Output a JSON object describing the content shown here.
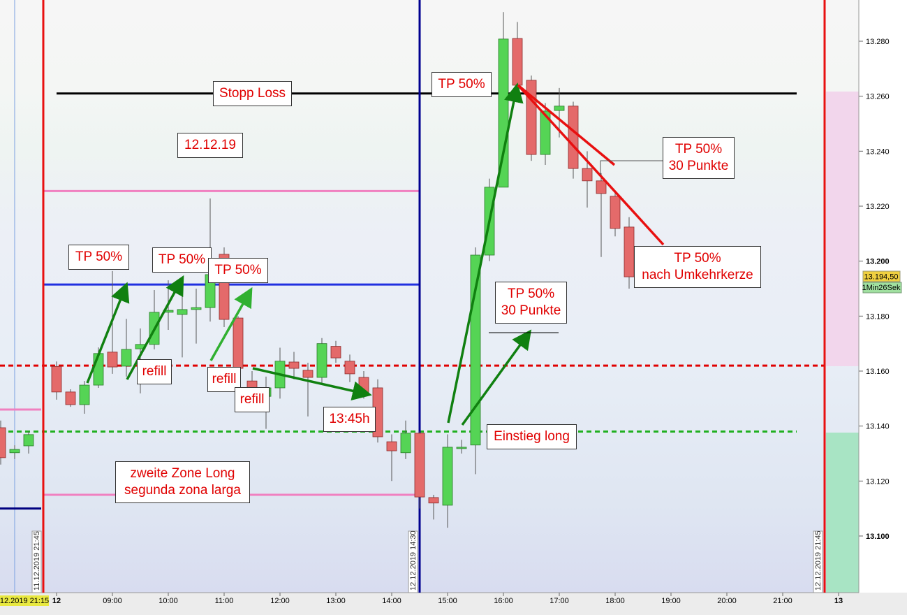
{
  "chart_data": {
    "type": "candlestick",
    "x": [
      7.0,
      7.25,
      7.5,
      8.0,
      8.25,
      8.5,
      8.75,
      9.0,
      9.25,
      9.5,
      9.75,
      10.0,
      10.25,
      10.5,
      10.75,
      11.0,
      11.25,
      11.5,
      11.75,
      12.0,
      12.25,
      12.5,
      12.75,
      13.0,
      13.25,
      13.5,
      13.75,
      14.0,
      14.25,
      14.5,
      14.75,
      15.0,
      15.25,
      15.5,
      15.75,
      16.0,
      16.25,
      16.5,
      16.75,
      17.0,
      17.25,
      17.5,
      17.75,
      18.0,
      18.25
    ],
    "open": [
      13.1394,
      13.1303,
      13.1328,
      13.1617,
      13.1524,
      13.1478,
      13.1549,
      13.1669,
      13.1618,
      13.1681,
      13.1697,
      13.1814,
      13.1806,
      13.1824,
      13.1831,
      13.2025,
      13.1793,
      13.1564,
      13.1508,
      13.1539,
      13.1633,
      13.1603,
      13.1577,
      13.169,
      13.1636,
      13.1577,
      13.1539,
      13.1343,
      13.1303,
      13.1374,
      13.114,
      13.1112,
      13.1318,
      13.1331,
      13.2022,
      13.2269,
      13.281,
      13.2658,
      13.2388,
      13.2548,
      13.2564,
      13.2337,
      13.2292,
      13.2236,
      13.2124
    ],
    "high": [
      13.142,
      13.133,
      13.138,
      13.1635,
      13.1534,
      13.1564,
      13.1686,
      13.1964,
      13.179,
      13.1755,
      13.1895,
      13.193,
      13.188,
      13.19,
      13.2228,
      13.205,
      13.18,
      13.16,
      13.158,
      13.1685,
      13.167,
      13.163,
      13.172,
      13.171,
      13.166,
      13.16,
      13.157,
      13.137,
      13.142,
      13.138,
      13.115,
      13.137,
      13.135,
      13.205,
      13.23,
      13.2906,
      13.287,
      13.2675,
      13.2575,
      13.263,
      13.258,
      13.24,
      13.232,
      13.225,
      13.216
    ],
    "low": [
      13.126,
      13.128,
      13.13,
      13.1496,
      13.147,
      13.1445,
      13.1539,
      13.159,
      13.158,
      13.1519,
      13.1679,
      13.175,
      13.165,
      13.17,
      13.178,
      13.176,
      13.152,
      13.146,
      13.139,
      13.15,
      13.157,
      13.1435,
      13.155,
      13.163,
      13.156,
      13.15,
      13.134,
      13.12,
      13.128,
      13.11,
      13.106,
      13.103,
      13.13,
      13.1225,
      13.2,
      13.2269,
      13.26,
      13.2365,
      13.235,
      13.245,
      13.23,
      13.2195,
      13.2015,
      13.209,
      13.19
    ],
    "close": [
      13.1285,
      13.1315,
      13.1369,
      13.1524,
      13.1478,
      13.1549,
      13.1664,
      13.1615,
      13.1679,
      13.1697,
      13.1814,
      13.1821,
      13.1824,
      13.1831,
      13.1951,
      13.1788,
      13.161,
      13.1536,
      13.1539,
      13.1636,
      13.161,
      13.1577,
      13.17,
      13.1648,
      13.159,
      13.1514,
      13.1361,
      13.131,
      13.1374,
      13.1142,
      13.112,
      13.1323,
      13.1323,
      13.2022,
      13.2269,
      13.2808,
      13.264,
      13.2388,
      13.2546,
      13.2564,
      13.2337,
      13.2292,
      13.2246,
      13.2119,
      13.1943
    ],
    "up_color": "#55d455",
    "down_color": "#e46a6a",
    "xlim": [
      6.9875,
      22.3625
    ],
    "ylim": [
      13.0794,
      13.295
    ],
    "xticks": [
      {
        "value": 8,
        "label": "12"
      },
      {
        "value": 9,
        "label": "09:00"
      },
      {
        "value": 10,
        "label": "10:00"
      },
      {
        "value": 11,
        "label": "11:00"
      },
      {
        "value": 12,
        "label": "12:00"
      },
      {
        "value": 13,
        "label": "13:00"
      },
      {
        "value": 14,
        "label": "14:00"
      },
      {
        "value": 15,
        "label": "15:00"
      },
      {
        "value": 16,
        "label": "16:00"
      },
      {
        "value": 17,
        "label": "17:00"
      },
      {
        "value": 18,
        "label": "18:00"
      },
      {
        "value": 19,
        "label": "19:00"
      },
      {
        "value": 20,
        "label": "20:00"
      },
      {
        "value": 21,
        "label": "21:00"
      },
      {
        "value": 22,
        "label": "13"
      }
    ],
    "yticks": [
      {
        "value": 13.1,
        "label": "13.100"
      },
      {
        "value": 13.12,
        "label": "13.120"
      },
      {
        "value": 13.14,
        "label": "13.140"
      },
      {
        "value": 13.16,
        "label": "13.160"
      },
      {
        "value": 13.18,
        "label": "13.180"
      },
      {
        "value": 13.2,
        "label": "13.200"
      },
      {
        "value": 13.22,
        "label": "13.220"
      },
      {
        "value": 13.24,
        "label": "13.240"
      },
      {
        "value": 13.26,
        "label": "13.260"
      },
      {
        "value": 13.28,
        "label": "13.280"
      }
    ],
    "levels": [
      {
        "value": 13.261,
        "x": [
          8,
          21.25
        ],
        "color": "#000000",
        "dashed": false
      },
      {
        "value": 13.2255,
        "x": [
          7.7625,
          14.5
        ],
        "color": "#f080c0",
        "dashed": false
      },
      {
        "value": 13.1915,
        "x": [
          7.7625,
          14.5
        ],
        "color": "#2030e0",
        "dashed": false
      },
      {
        "value": 13.162,
        "x": [
          6.9875,
          21.75
        ],
        "color": "#e00000",
        "dashed": true
      },
      {
        "value": 13.138,
        "x": [
          6.9875,
          21.25
        ],
        "color": "#20b020",
        "dashed": true
      },
      {
        "value": 13.115,
        "x": [
          7.7625,
          14.5
        ],
        "color": "#f080c0",
        "dashed": false
      },
      {
        "value": 13.146,
        "x": [
          6.9875,
          7.725
        ],
        "color": "#f080c0",
        "dashed": false
      },
      {
        "value": 13.11,
        "x": [
          6.9875,
          7.725
        ],
        "color": "#000080",
        "dashed": false
      }
    ],
    "markers": [
      {
        "x": 7.7625,
        "label": "11.12.2019 21:45",
        "color": "#e81010"
      },
      {
        "x": 14.5,
        "label": "12.12.2019 14:30",
        "color": "#000090"
      },
      {
        "x": 21.75,
        "label": "12.12.2019 21:45",
        "color": "#e81010"
      }
    ],
    "annotations": [
      [
        "Stopp Loss"
      ],
      [
        "12.12.19"
      ],
      [
        "TP 50%"
      ],
      [
        "TP 50%"
      ],
      [
        "TP 50%"
      ],
      [
        "refill"
      ],
      [
        "refill"
      ],
      [
        "refill"
      ],
      [
        "13:45h"
      ],
      [
        "zweite Zone Long",
        "segunda zona larga"
      ],
      [
        "TP 50%"
      ],
      [
        "TP 50%",
        "30 Punkte"
      ],
      [
        "TP 50%",
        "nach Umkehrkerze"
      ],
      [
        "TP 50%",
        "30 Punkte"
      ],
      [
        "Einstieg long"
      ]
    ],
    "last_price": {
      "value": 13.1945,
      "label": "13.194,50"
    },
    "timer": "1Min26Sek",
    "cursor_time": "12.2019 21:15"
  }
}
